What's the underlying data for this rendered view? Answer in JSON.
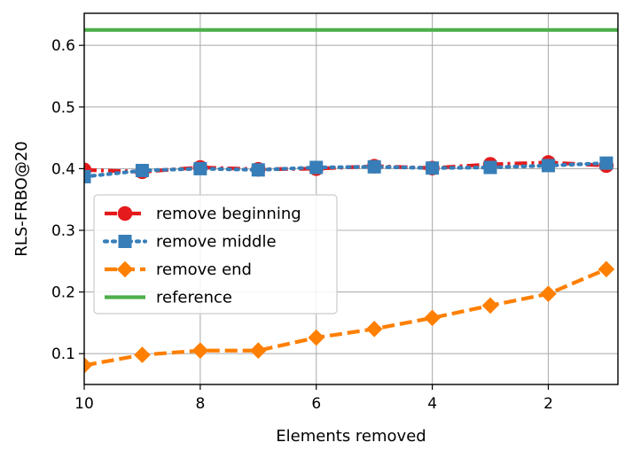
{
  "chart_data": {
    "type": "line",
    "title": "",
    "xlabel": "Elements removed",
    "ylabel": "RLS-FRBO@20",
    "xlim": [
      10,
      0.8
    ],
    "ylim": [
      0.05,
      0.652
    ],
    "x_ticks": [
      10,
      8,
      6,
      4,
      2
    ],
    "y_ticks": [
      0.1,
      0.2,
      0.3,
      0.4,
      0.5,
      0.6
    ],
    "grid": true,
    "legend_position": "center-left",
    "x": [
      10,
      9,
      8,
      7,
      6,
      5,
      4,
      3,
      2,
      1
    ],
    "series": [
      {
        "name": "remove beginning",
        "color": "#e41a1c",
        "line_style": "dashdot",
        "marker": "circle",
        "values": [
          0.398,
          0.395,
          0.402,
          0.399,
          0.4,
          0.404,
          0.401,
          0.407,
          0.41,
          0.405
        ]
      },
      {
        "name": "remove middle",
        "color": "#377eb8",
        "line_style": "dotted",
        "marker": "square",
        "values": [
          0.387,
          0.397,
          0.4,
          0.398,
          0.402,
          0.403,
          0.401,
          0.402,
          0.405,
          0.409
        ]
      },
      {
        "name": "remove end",
        "color": "#ff7f00",
        "line_style": "dashed",
        "marker": "diamond",
        "values": [
          0.081,
          0.098,
          0.105,
          0.105,
          0.126,
          0.14,
          0.158,
          0.178,
          0.197,
          0.237
        ]
      },
      {
        "name": "reference",
        "color": "#4daf4a",
        "line_style": "solid",
        "marker": "none",
        "values": [
          0.625,
          0.625,
          0.625,
          0.625,
          0.625,
          0.625,
          0.625,
          0.625,
          0.625,
          0.625
        ]
      }
    ]
  }
}
